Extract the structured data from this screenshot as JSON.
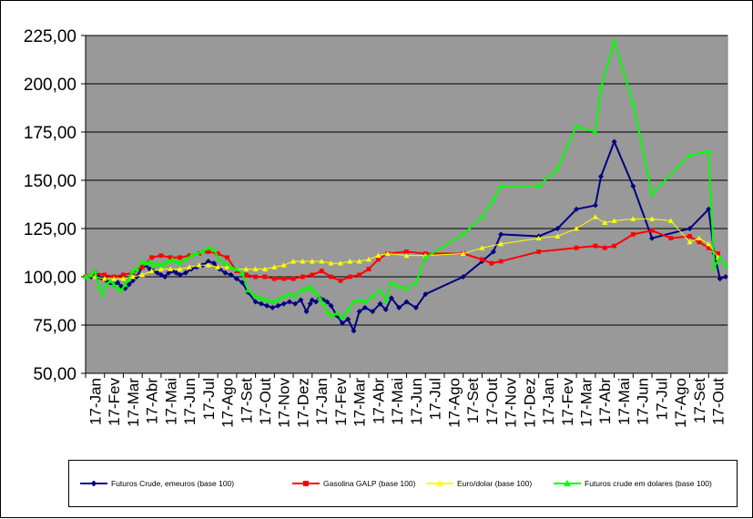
{
  "chart_data": {
    "type": "line",
    "title": "",
    "xlabel": "",
    "ylabel": "",
    "ylim": [
      50,
      225
    ],
    "y_ticks": [
      "50,00",
      "75,00",
      "100,00",
      "125,00",
      "150,00",
      "175,00",
      "200,00",
      "225,00"
    ],
    "y_tick_values": [
      50,
      75,
      100,
      125,
      150,
      175,
      200,
      225
    ],
    "x_ticks": [
      "17-Jan",
      "17-Fev",
      "17-Mar",
      "17-Abr",
      "17-Mai",
      "17-Jun",
      "17-Jul",
      "17-Ago",
      "17-Set",
      "17-Out",
      "17-Nov",
      "17-Dez",
      "17-Jan",
      "17-Fev",
      "17-Mar",
      "17-Abr",
      "17-Mai",
      "17-Jun",
      "17-Jul",
      "17-Ago",
      "17-Set",
      "17-Out",
      "17-Nov",
      "17-Dez",
      "17-Jan",
      "17-Fev",
      "17-Mar",
      "17-Abr",
      "17-Mai",
      "17-Jun",
      "17-Jul",
      "17-Ago",
      "17-Set",
      "17-Out"
    ],
    "grid": true,
    "background": "#999999",
    "legend_position": "bottom",
    "series": [
      {
        "name": "Futuros Crude, emeuros (base 100)",
        "color": "#000080",
        "marker": "diamond",
        "x": [
          0,
          0.3,
          0.5,
          0.7,
          0.9,
          1.1,
          1.3,
          1.5,
          1.7,
          1.9,
          2.1,
          2.3,
          2.5,
          2.7,
          3.0,
          3.2,
          3.4,
          3.6,
          3.8,
          4.0,
          4.2,
          4.4,
          4.6,
          4.8,
          5.0,
          5.3,
          5.6,
          5.9,
          6.2,
          6.5,
          6.8,
          7.1,
          7.4,
          7.7,
          8.0,
          8.3,
          8.6,
          9.0,
          9.3,
          9.6,
          9.9,
          10.2,
          10.5,
          10.8,
          11.1,
          11.4,
          11.7,
          11.9,
          12.0,
          12.2,
          12.4,
          12.6,
          12.8,
          13.0,
          13.3,
          13.6,
          13.9,
          14.2,
          14.5,
          14.8,
          15.2,
          15.6,
          15.9,
          16.2,
          16.6,
          17.0,
          17.5,
          18.0,
          20.0,
          21.0,
          21.6,
          22.0,
          24.0,
          25.0,
          26.0,
          27.0,
          27.3,
          28.0,
          29.0,
          30.0,
          32.0,
          33.0,
          33.3,
          33.6,
          33.9
        ],
        "y": [
          100,
          100,
          101,
          100,
          99,
          98,
          97,
          96,
          97,
          95,
          94,
          96,
          98,
          100,
          105,
          106,
          104,
          103,
          102,
          101,
          100,
          102,
          103,
          102,
          101,
          102,
          104,
          105,
          106,
          108,
          107,
          104,
          102,
          101,
          99,
          97,
          92,
          87,
          86,
          85,
          84,
          85,
          86,
          87,
          86,
          88,
          82,
          86,
          88,
          87,
          89,
          88,
          87,
          85,
          80,
          76,
          78,
          72,
          82,
          84,
          82,
          86,
          83,
          89,
          84,
          87,
          84,
          91,
          100,
          108,
          113,
          122,
          121,
          125,
          135,
          137,
          152,
          170,
          147,
          120,
          125,
          135,
          112,
          99,
          100
        ],
        "display_override": true
      },
      {
        "name": "Gasolina GALP (base 100)",
        "color": "#ff0000",
        "marker": "square",
        "x": [
          0,
          0.5,
          1.0,
          1.5,
          2.0,
          2.5,
          3.0,
          3.5,
          4.0,
          4.5,
          5.0,
          5.5,
          6.0,
          6.5,
          7.0,
          7.5,
          8.0,
          8.5,
          9.0,
          9.5,
          10.0,
          10.5,
          11.0,
          11.5,
          12.0,
          12.5,
          13.0,
          13.5,
          14.0,
          14.5,
          15.0,
          15.5,
          16.0,
          17.0,
          18.0,
          20.0,
          21.0,
          21.5,
          22.0,
          24.0,
          26.0,
          27.0,
          27.5,
          28.0,
          29.0,
          30.0,
          31.0,
          32.0,
          32.5,
          33.0,
          33.5
        ],
        "y": [
          100,
          102,
          101,
          100,
          101,
          102,
          105,
          110,
          111,
          110,
          110,
          111,
          112,
          113,
          112,
          110,
          103,
          101,
          100,
          100,
          99,
          99,
          99,
          100,
          101,
          103,
          100,
          98,
          100,
          101,
          104,
          109,
          112,
          113,
          112,
          112,
          109,
          107,
          108,
          113,
          115,
          116,
          115,
          116,
          122,
          124,
          120,
          121,
          118,
          115,
          112
        ],
        "display_override": true
      },
      {
        "name": "Euro/dolar (base 100)",
        "color": "#ffff00",
        "marker": "triangle",
        "x": [
          0,
          0.5,
          1.0,
          1.5,
          2.0,
          2.5,
          3.0,
          3.5,
          4.0,
          4.5,
          5.0,
          5.5,
          6.0,
          6.5,
          7.0,
          7.5,
          8.0,
          8.5,
          9.0,
          9.5,
          10.0,
          10.5,
          11.0,
          11.5,
          12.0,
          12.5,
          13.0,
          13.5,
          14.0,
          14.5,
          15.0,
          15.5,
          16.0,
          17.0,
          18.0,
          20.0,
          21.0,
          22.0,
          24.0,
          25.0,
          26.0,
          27.0,
          27.5,
          28.0,
          29.0,
          30.0,
          31.0,
          32.0,
          32.5,
          33.0,
          33.5
        ],
        "y": [
          100,
          100,
          99,
          99,
          99,
          100,
          101,
          103,
          104,
          104,
          104,
          105,
          106,
          106,
          105,
          105,
          104,
          104,
          104,
          104,
          105,
          106,
          108,
          108,
          108,
          108,
          107,
          107,
          108,
          108,
          109,
          111,
          112,
          111,
          111,
          112,
          115,
          117,
          120,
          121,
          125,
          131,
          128,
          129,
          130,
          130,
          129,
          118,
          120,
          117,
          110
        ],
        "display_override": true
      },
      {
        "name": "Futuros crude em dolares (base 100)",
        "color": "#00ff00",
        "marker": "triangle",
        "x": [
          0,
          0.3,
          0.5,
          0.7,
          0.9,
          1.1,
          1.3,
          1.5,
          1.7,
          1.9,
          2.1,
          2.3,
          2.5,
          2.7,
          3.0,
          3.2,
          3.4,
          3.6,
          3.8,
          4.0,
          4.2,
          4.4,
          4.6,
          4.8,
          5.0,
          5.3,
          5.6,
          5.9,
          6.2,
          6.5,
          6.8,
          7.1,
          7.4,
          7.7,
          8.0,
          8.3,
          8.6,
          9.0,
          9.3,
          9.6,
          9.9,
          10.2,
          10.5,
          10.8,
          11.1,
          11.4,
          11.7,
          11.9,
          12.0,
          12.2,
          12.4,
          12.6,
          12.8,
          13.0,
          13.3,
          13.6,
          13.9,
          14.2,
          14.5,
          14.8,
          15.2,
          15.6,
          15.9,
          16.2,
          16.6,
          17.0,
          17.5,
          18.0,
          20.0,
          21.0,
          21.6,
          22.0,
          24.0,
          25.0,
          26.0,
          27.0,
          27.3,
          28.0,
          29.0,
          30.0,
          32.0,
          33.0,
          33.3,
          33.6,
          33.9
        ],
        "y": [
          100,
          101,
          103,
          95,
          91,
          96,
          98,
          96,
          94,
          93,
          96,
          99,
          103,
          104,
          108,
          107,
          108,
          106,
          107,
          106,
          107,
          108,
          109,
          108,
          107,
          109,
          111,
          112,
          113,
          115,
          114,
          109,
          107,
          105,
          104,
          102,
          93,
          90,
          89,
          88,
          87,
          88,
          90,
          91,
          90,
          93,
          94,
          95,
          93,
          92,
          89,
          86,
          82,
          80,
          81,
          79,
          83,
          87,
          88,
          87,
          90,
          93,
          88,
          97,
          95,
          94,
          97,
          110,
          122,
          131,
          140,
          147,
          147,
          156,
          178,
          175,
          198,
          222,
          190,
          143,
          163,
          165,
          105,
          110,
          106
        ],
        "display_override": true
      }
    ]
  }
}
